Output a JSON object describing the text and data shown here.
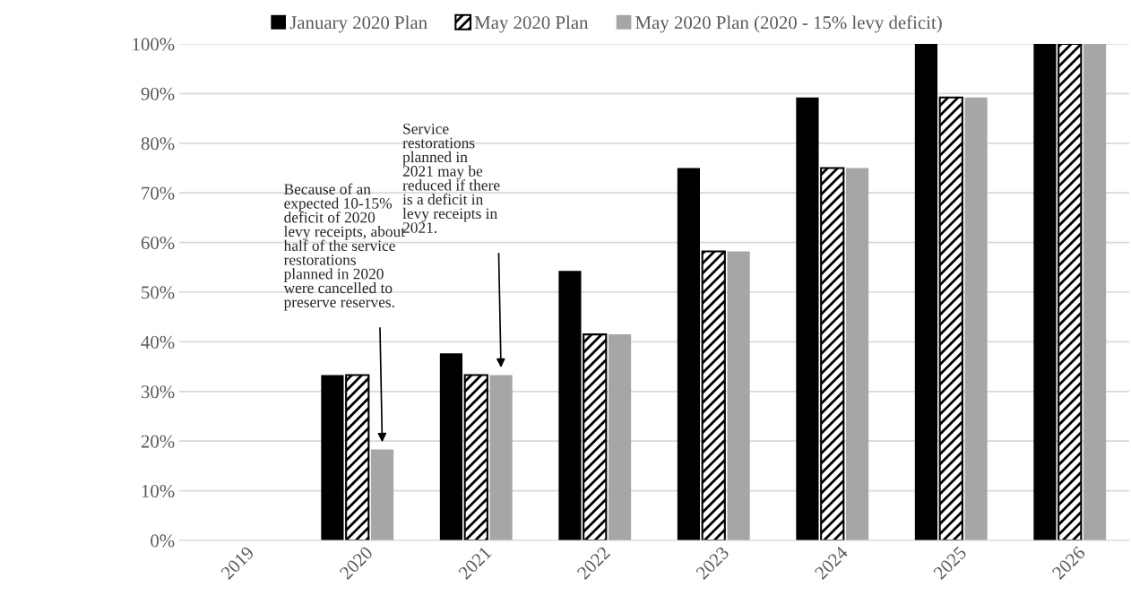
{
  "chart_data": {
    "type": "bar",
    "categories": [
      "2019",
      "2020",
      "2021",
      "2022",
      "2023",
      "2024",
      "2025",
      "2026"
    ],
    "series": [
      {
        "name": "January 2020 Plan",
        "color": "#000000",
        "values": [
          null,
          33.3,
          37.7,
          54.3,
          75,
          89.2,
          100,
          100
        ]
      },
      {
        "name": "May 2020 Plan",
        "color": "#000000",
        "values": [
          null,
          33.3,
          33.3,
          41.5,
          58.2,
          75,
          89.2,
          100
        ]
      },
      {
        "name": "May 2020 Plan (2020 - 15% levy deficit)",
        "color": "#a6a6a6",
        "values": [
          null,
          18.3,
          33.3,
          41.5,
          58.2,
          75,
          89.2,
          100
        ]
      }
    ],
    "ylim": [
      0,
      100
    ],
    "yticks": [
      {
        "value": 0,
        "label": "0%"
      },
      {
        "value": 10,
        "label": "10%"
      },
      {
        "value": 20,
        "label": "20%"
      },
      {
        "value": 30,
        "label": "30%"
      },
      {
        "value": 40,
        "label": "40%"
      },
      {
        "value": 50,
        "label": "50%"
      },
      {
        "value": 60,
        "label": "60%"
      },
      {
        "value": 70,
        "label": "70%"
      },
      {
        "value": 80,
        "label": "80%"
      },
      {
        "value": 90,
        "label": "90%"
      },
      {
        "value": 100,
        "label": "100%"
      }
    ],
    "grid": "y",
    "legend": "top",
    "annotations": [
      "Because of an\nexpected 10-15%\ndeficit of 2020\nlevy receipts, about\nhalf of the service\nrestorations\nplanned in 2020\nwere cancelled to\npreserve reserves.",
      "Service\nrestorations\nplanned in\n2021 may be\nreduced if there\nis a deficit in\nlevy receipts in\n2021."
    ]
  }
}
